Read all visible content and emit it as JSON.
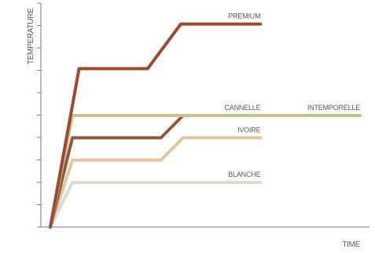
{
  "chart_data": {
    "type": "line",
    "xlabel": "TIME",
    "ylabel": "TEMPERATURE",
    "xlim": [
      0,
      14
    ],
    "ylim": [
      0,
      10
    ],
    "grid": false,
    "series": [
      {
        "name": "BLANCHE",
        "color": "#dcdad6",
        "x": [
          0,
          1,
          9.5
        ],
        "y": [
          0,
          2,
          2
        ]
      },
      {
        "name": "IVOIRE",
        "color": "#e2c6a2",
        "x": [
          0,
          1,
          5,
          6,
          9.5
        ],
        "y": [
          0,
          3,
          3,
          4,
          4
        ]
      },
      {
        "name": "CANNELLE",
        "color": "#8a5a3b",
        "x": [
          0,
          1,
          5,
          6,
          9.5
        ],
        "y": [
          0,
          4,
          4,
          5,
          5
        ]
      },
      {
        "name": "INTEMPORELLE",
        "color": "#c8c18d",
        "x": [
          0,
          1,
          14
        ],
        "y": [
          0,
          5,
          5
        ]
      },
      {
        "name": "PREMIUM",
        "color": "#9b4a31",
        "x": [
          0,
          1.3,
          4.4,
          5.9,
          9.5
        ],
        "y": [
          0,
          7.1,
          7.1,
          9.1,
          9.1
        ]
      }
    ]
  }
}
